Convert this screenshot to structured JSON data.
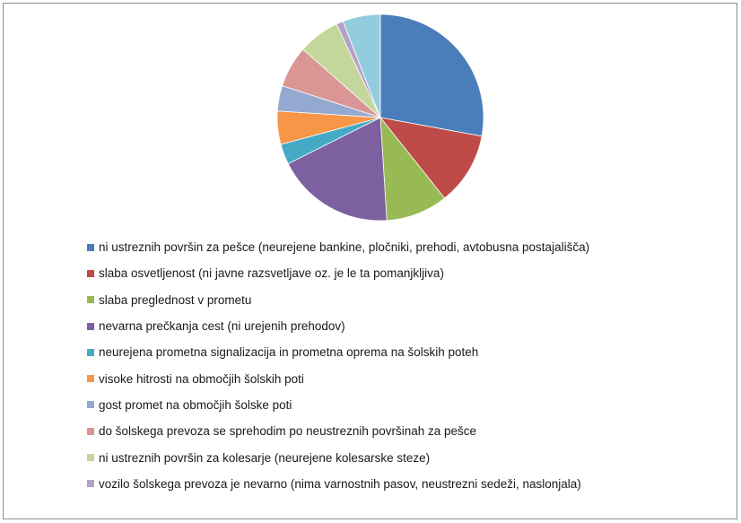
{
  "chart_data": {
    "type": "pie",
    "title": "",
    "legend_position": "bottom",
    "start_angle_deg": 0,
    "direction": "clockwise",
    "slices": [
      {
        "label": "ni ustreznih površin za pešce (neurejene bankine, pločniki, prehodi, avtobusna postajališča)",
        "value": 27.9,
        "color": "#4a7ebb"
      },
      {
        "label": "slaba osvetljenost (ni javne razsvetljave oz. je le ta pomanjkljiva)",
        "value": 11.4,
        "color": "#be4b48"
      },
      {
        "label": "slaba preglednost v prometu",
        "value": 9.7,
        "color": "#98b954"
      },
      {
        "label": "nevarna prečkanja cest (ni urejenih prehodov)",
        "value": 18.6,
        "color": "#7d60a0"
      },
      {
        "label": "neurejena prometna signalizacija in prometna oprema na šolskih poteh",
        "value": 3.2,
        "color": "#46aac5"
      },
      {
        "label": "visoke hitrosti na območjih šolskih poti",
        "value": 5.2,
        "color": "#f79646"
      },
      {
        "label": "gost promet na območjih šolske poti",
        "value": 4.0,
        "color": "#93a9cf"
      },
      {
        "label": "do šolskega prevoza se sprehodim po neustreznih površinah za pešce",
        "value": 6.5,
        "color": "#d99694"
      },
      {
        "label": "ni ustreznih površin za kolesarje (neurejene kolesarske steze)",
        "value": 6.5,
        "color": "#c3d69b"
      },
      {
        "label": "vozilo šolskega prevoza je nevarno (nima varnostnih pasov, neustrezni sedeži, naslonjala)",
        "value": 1.1,
        "color": "#b3a2c7"
      },
      {
        "label": "",
        "value": 5.9,
        "color": "#93cddd"
      }
    ]
  }
}
